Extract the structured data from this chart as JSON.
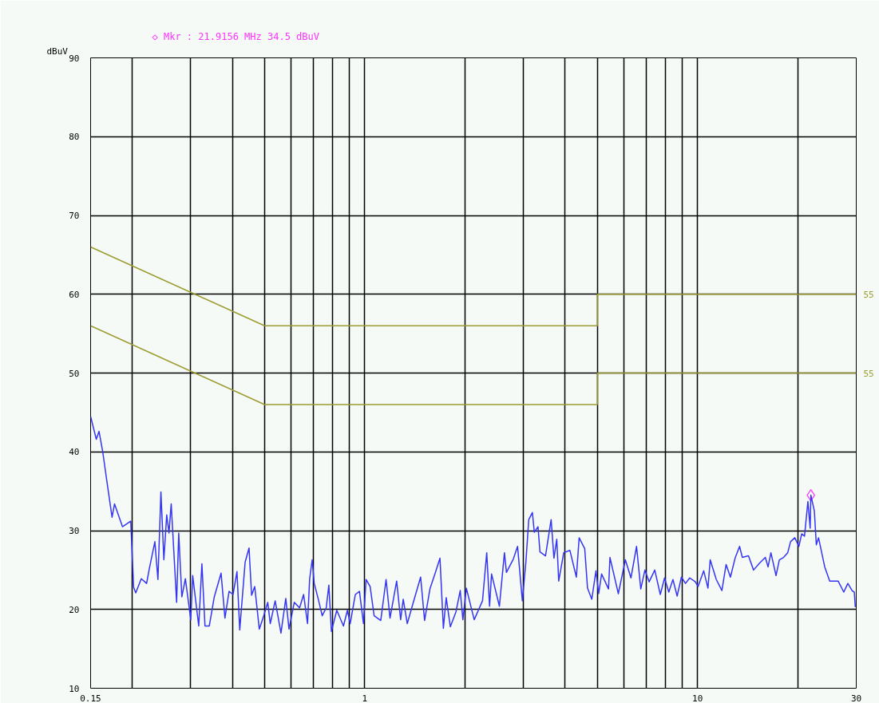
{
  "chart_data": {
    "type": "line",
    "ylabel": "dBuV",
    "log": "x",
    "grid": true,
    "xlim": [
      0.15,
      30
    ],
    "ylim": [
      10,
      90
    ],
    "xticks": [
      {
        "value": 0.15,
        "label": "0.15"
      },
      {
        "value": 0.2,
        "label": null
      },
      {
        "value": 0.3,
        "label": null
      },
      {
        "value": 0.4,
        "label": null
      },
      {
        "value": 0.5,
        "label": null
      },
      {
        "value": 0.6,
        "label": null
      },
      {
        "value": 0.7,
        "label": null
      },
      {
        "value": 0.8,
        "label": null
      },
      {
        "value": 0.9,
        "label": null
      },
      1,
      {
        "value": 2,
        "label": null
      },
      {
        "value": 3,
        "label": null
      },
      {
        "value": 4,
        "label": null
      },
      {
        "value": 5,
        "label": null
      },
      {
        "value": 6,
        "label": null
      },
      {
        "value": 7,
        "label": null
      },
      {
        "value": 8,
        "label": null
      },
      {
        "value": 9,
        "label": null
      },
      10,
      {
        "value": 20,
        "label": null
      },
      30
    ],
    "yticks": [
      10,
      20,
      30,
      40,
      50,
      60,
      70,
      80,
      90
    ],
    "annotations": [
      "◇ Mkr : 21.9156 MHz 34.5 dBuV"
    ],
    "series": [
      {
        "type": "scatter",
        "marker": "diamond",
        "color": "#ff33ff",
        "x": [
          21.9156
        ],
        "values": [
          34.5
        ]
      },
      {
        "name": "55",
        "color": "#9c9c32",
        "x": [
          0.15,
          0.5,
          5,
          5,
          30
        ],
        "values": [
          66,
          56,
          56,
          60,
          60
        ]
      },
      {
        "name": "55",
        "color": "#9c9c32",
        "x": [
          0.15,
          0.5,
          5,
          5,
          30
        ],
        "values": [
          56,
          46,
          46,
          50,
          50
        ]
      },
      {
        "color": "#3535f5",
        "x": [
          0.15,
          0.156,
          0.159,
          0.163,
          0.169,
          0.174,
          0.177,
          0.187,
          0.198,
          0.202,
          0.205,
          0.213,
          0.221,
          0.225,
          0.234,
          0.239,
          0.244,
          0.249,
          0.254,
          0.258,
          0.262,
          0.272,
          0.276,
          0.282,
          0.289,
          0.3,
          0.304,
          0.317,
          0.324,
          0.331,
          0.341,
          0.353,
          0.37,
          0.38,
          0.391,
          0.402,
          0.413,
          0.421,
          0.437,
          0.449,
          0.457,
          0.467,
          0.482,
          0.497,
          0.511,
          0.52,
          0.538,
          0.56,
          0.579,
          0.592,
          0.614,
          0.637,
          0.655,
          0.673,
          0.683,
          0.695,
          0.705,
          0.725,
          0.745,
          0.766,
          0.78,
          0.794,
          0.824,
          0.863,
          0.887,
          0.904,
          0.937,
          0.964,
          0.991,
          1.009,
          1.038,
          1.067,
          1.117,
          1.159,
          1.191,
          1.247,
          1.282,
          1.305,
          1.342,
          1.393,
          1.472,
          1.513,
          1.57,
          1.628,
          1.683,
          1.723,
          1.757,
          1.808,
          1.88,
          1.936,
          1.972,
          2.02,
          2.133,
          2.259,
          2.326,
          2.372,
          2.405,
          2.539,
          2.629,
          2.666,
          2.796,
          2.879,
          2.976,
          3.051,
          3.111,
          3.19,
          3.233,
          3.316,
          3.362,
          3.493,
          3.562,
          3.632,
          3.703,
          3.776,
          3.828,
          3.963,
          4.135,
          4.325,
          4.409,
          4.583,
          4.672,
          4.812,
          4.953,
          5.048,
          5.15,
          5.403,
          5.457,
          5.782,
          6.07,
          6.31,
          6.559,
          6.754,
          6.95,
          7.157,
          7.44,
          7.731,
          7.962,
          8.199,
          8.437,
          8.687,
          8.946,
          9.204,
          9.478,
          9.851,
          10.04,
          10.44,
          10.75,
          10.92,
          11.39,
          11.84,
          12.19,
          12.56,
          12.97,
          13.38,
          13.64,
          14.23,
          14.74,
          15.38,
          15.99,
          16.3,
          16.62,
          17.22,
          17.62,
          18.14,
          18.67,
          19.04,
          19.61,
          20.17,
          20.57,
          20.97,
          21.47,
          21.81,
          21.9156,
          22.45,
          22.76,
          23.11,
          24.12,
          24.97,
          26.46,
          27.52,
          28.31,
          29.15,
          29.6,
          29.8
        ],
        "values": [
          44.5,
          41.6,
          42.6,
          40.1,
          35.4,
          31.7,
          33.4,
          30.5,
          31.2,
          22.8,
          22.1,
          23.9,
          23.3,
          25.1,
          28.6,
          23.8,
          34.9,
          26.3,
          32.0,
          29.7,
          33.4,
          20.9,
          29.7,
          21.6,
          23.9,
          18.7,
          24.3,
          17.9,
          25.8,
          17.9,
          17.9,
          21.6,
          24.6,
          18.9,
          22.3,
          21.9,
          24.8,
          17.4,
          26.0,
          27.8,
          21.8,
          22.9,
          17.5,
          19.2,
          20.9,
          18.2,
          21.1,
          17.0,
          21.4,
          17.5,
          20.9,
          20.2,
          21.9,
          18.2,
          23.9,
          26.3,
          23.3,
          21.3,
          19.2,
          20.2,
          23.1,
          17.2,
          19.9,
          17.9,
          19.9,
          18.2,
          21.9,
          22.3,
          18.2,
          23.8,
          22.9,
          19.2,
          18.6,
          23.8,
          18.9,
          23.6,
          18.7,
          21.3,
          18.2,
          20.6,
          24.1,
          18.6,
          22.6,
          24.6,
          26.5,
          17.6,
          21.5,
          17.8,
          19.7,
          22.4,
          18.7,
          22.7,
          18.7,
          21.1,
          27.2,
          20.4,
          24.5,
          20.4,
          27.2,
          24.7,
          26.4,
          28.0,
          21.1,
          26.1,
          31.4,
          32.3,
          29.8,
          30.5,
          27.3,
          26.8,
          29.1,
          31.4,
          26.5,
          28.9,
          23.6,
          27.2,
          27.5,
          24.1,
          29.1,
          27.7,
          22.7,
          21.3,
          24.9,
          22.0,
          24.5,
          22.6,
          26.6,
          22.0,
          26.3,
          24.0,
          28.0,
          22.6,
          25.0,
          23.5,
          25.0,
          21.9,
          24.0,
          22.2,
          23.8,
          21.7,
          24.1,
          23.3,
          24.0,
          23.5,
          22.9,
          24.9,
          22.7,
          26.3,
          23.8,
          22.4,
          25.7,
          24.1,
          26.5,
          28.0,
          26.6,
          26.8,
          25.0,
          25.9,
          26.6,
          25.4,
          27.2,
          24.3,
          26.3,
          26.6,
          27.2,
          28.6,
          29.1,
          28.0,
          29.6,
          29.3,
          33.7,
          30.3,
          34.5,
          32.5,
          28.2,
          29.1,
          25.4,
          23.6,
          23.6,
          22.2,
          23.3,
          22.4,
          22.2,
          20.3
        ]
      }
    ]
  }
}
